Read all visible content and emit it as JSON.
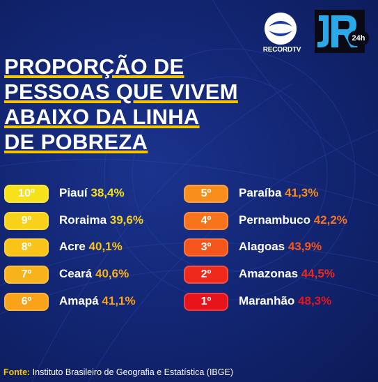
{
  "brand": {
    "record": "RECORDTV",
    "jr": "JR",
    "jr_badge": "24h"
  },
  "title_lines": [
    "PROPORÇÃO DE",
    "PESSOAS QUE VIVEM",
    "ABAIXO DA LINHA",
    "DE POBREZA"
  ],
  "left_column": [
    {
      "rank": "10º",
      "state": "Piauí",
      "value": "38,4%",
      "badge_color": "#f7e11a",
      "value_color": "#f7e11a"
    },
    {
      "rank": "9º",
      "state": "Roraima",
      "value": "39,6%",
      "badge_color": "#f8d21a",
      "value_color": "#f8d21a"
    },
    {
      "rank": "8º",
      "state": "Acre",
      "value": "40,1%",
      "badge_color": "#f9c31a",
      "value_color": "#f9c31a"
    },
    {
      "rank": "7º",
      "state": "Ceará",
      "value": "40,6%",
      "badge_color": "#f9b31a",
      "value_color": "#f9b31a"
    },
    {
      "rank": "6º",
      "state": "Amapá",
      "value": "41,1%",
      "badge_color": "#f9a21a",
      "value_color": "#f9a21a"
    }
  ],
  "right_column": [
    {
      "rank": "5º",
      "state": "Paraíba",
      "value": "41,3%",
      "badge_color": "#f98e1c",
      "value_color": "#f98e1c"
    },
    {
      "rank": "4º",
      "state": "Pernambuco",
      "value": "42,2%",
      "badge_color": "#f8741c",
      "value_color": "#f8741c"
    },
    {
      "rank": "3º",
      "state": "Alagoas",
      "value": "43,9%",
      "badge_color": "#f4561c",
      "value_color": "#f4561c"
    },
    {
      "rank": "2º",
      "state": "Amazonas",
      "value": "44,5%",
      "badge_color": "#ef2a1c",
      "value_color": "#ef2a1c"
    },
    {
      "rank": "1º",
      "state": "Maranhão",
      "value": "48,3%",
      "badge_color": "#e8141c",
      "value_color": "#e8141c"
    }
  ],
  "source": {
    "label": "Fonte:",
    "text": "Instituto Brasileiro de Geografia e Estatística (IBGE)"
  }
}
